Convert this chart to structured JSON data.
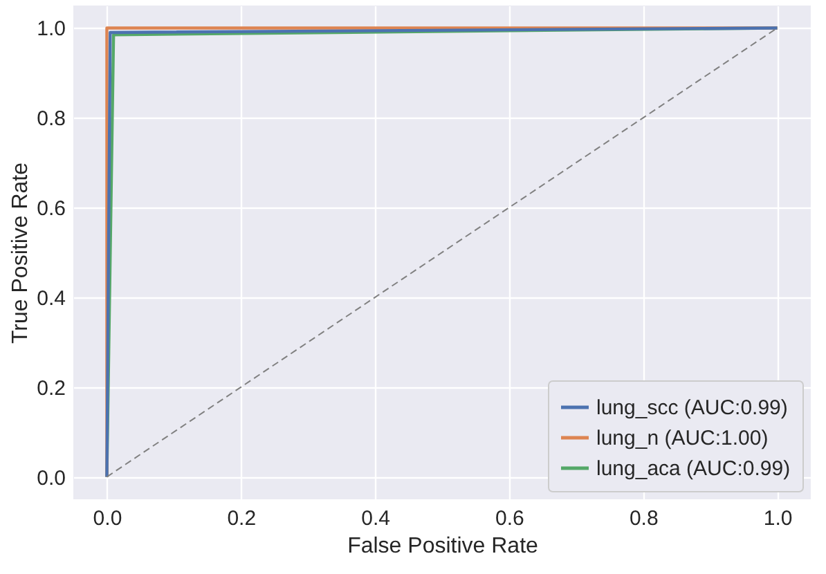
{
  "chart_data": {
    "type": "line",
    "xlabel": "False Positive Rate",
    "ylabel": "True Positive Rate",
    "xlim": [
      -0.05,
      1.05
    ],
    "ylim": [
      -0.05,
      1.05
    ],
    "xticks": [
      {
        "value": 0,
        "label": "0.0"
      },
      0.2,
      0.4,
      0.6,
      0.8,
      {
        "value": 1,
        "label": "1.0"
      }
    ],
    "yticks": [
      {
        "value": 0,
        "label": "0.0"
      },
      0.2,
      0.4,
      0.6,
      0.8,
      {
        "value": 1,
        "label": "1.0"
      }
    ],
    "grid": true,
    "legend": "bottom right",
    "marker": "none",
    "series": [
      {
        "name": "lung_scc (AUC:0.99)",
        "color": "#4c72b0",
        "x": [
          0,
          0.005,
          1
        ],
        "values": [
          0,
          0.99,
          1
        ]
      },
      {
        "name": "lung_n (AUC:1.00)",
        "color": "#dd8452",
        "x": [
          0,
          0,
          1
        ],
        "values": [
          0,
          1,
          1
        ]
      },
      {
        "name": "lung_aca (AUC:0.99)",
        "color": "#55a868",
        "x": [
          0,
          0.01,
          1
        ],
        "values": [
          0,
          0.985,
          1
        ]
      },
      {
        "type": "line",
        "color": "#808080",
        "line_style": "dashed",
        "x": [
          0,
          1
        ],
        "values": [
          0,
          1
        ]
      }
    ]
  }
}
